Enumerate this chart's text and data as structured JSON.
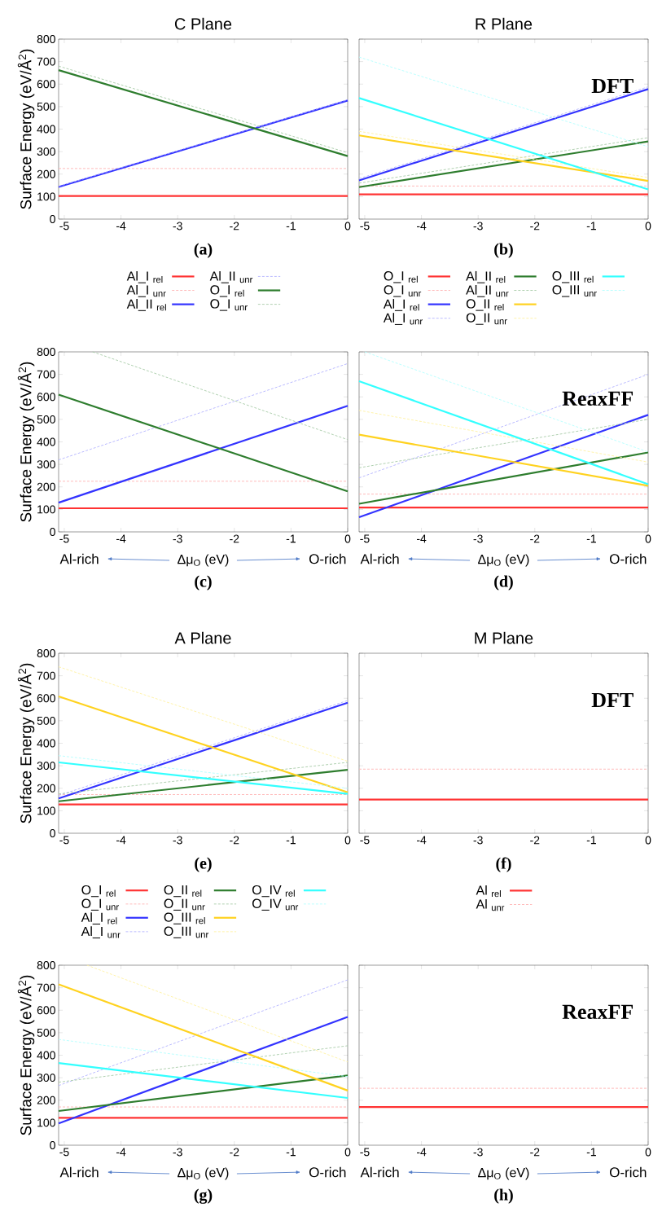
{
  "chart_data": [
    {
      "type": "line",
      "title": "C Plane",
      "ylabel": "Surface Energy (eV/Å$^{2}$)",
      "annotations": [
        "(a)"
      ],
      "xlim": [
        -5.1,
        0
      ],
      "ylim": [
        0,
        800
      ],
      "xticks": [
        -5,
        -4,
        -3,
        -2,
        -1,
        0
      ],
      "yticks": [
        0,
        100,
        200,
        300,
        400,
        500,
        600,
        700,
        800
      ],
      "legend": "bottom",
      "series": [
        {
          "name": "Al_I $_{rel}$",
          "color": "#ff3333",
          "x": [
            -5.1,
            0
          ],
          "values": [
            103,
            103
          ]
        },
        {
          "name": "Al_I $_{unr}$",
          "color": "#ffb3b3",
          "line_style": "dashed",
          "x": [
            -5.1,
            0
          ],
          "values": [
            225,
            225
          ]
        },
        {
          "name": "Al_II $_{rel}$",
          "color": "#3333ff",
          "x": [
            -5.1,
            0
          ],
          "values": [
            143,
            527
          ]
        },
        {
          "name": "Al_II $_{unr}$",
          "color": "#b3b3ff",
          "line_style": "dashed",
          "x": [
            -5.1,
            0
          ],
          "values": [
            146,
            530
          ]
        },
        {
          "name": "O_I $_{rel}$",
          "color": "#2e7d2e",
          "x": [
            -5.1,
            0
          ],
          "values": [
            662,
            280
          ]
        },
        {
          "name": "O_I $_{unr}$",
          "color": "#a8cca8",
          "line_style": "dashed",
          "x": [
            -5.1,
            0
          ],
          "values": [
            680,
            295
          ]
        }
      ]
    },
    {
      "type": "line",
      "title": "R Plane",
      "subtitle": "DFT",
      "annotations": [
        "(b)"
      ],
      "tick_labels": "x",
      "xlim": [
        -5.1,
        0
      ],
      "ylim": [
        0,
        800
      ],
      "xticks": [
        -5,
        -4,
        -3,
        -2,
        -1,
        0
      ],
      "yticks": [
        0,
        100,
        200,
        300,
        400,
        500,
        600,
        700,
        800
      ],
      "legend": "bottom",
      "series": [
        {
          "name": "O_I $_{rel}$",
          "color": "#ff3333",
          "x": [
            -5.1,
            0
          ],
          "values": [
            110,
            110
          ]
        },
        {
          "name": "O_I $_{unr}$",
          "color": "#ffb3b3",
          "line_style": "dashed",
          "x": [
            -5.1,
            0
          ],
          "values": [
            147,
            147
          ]
        },
        {
          "name": "Al_I $_{rel}$",
          "color": "#3333ff",
          "x": [
            -5.1,
            0
          ],
          "values": [
            172,
            578
          ]
        },
        {
          "name": "Al_I $_{unr}$",
          "color": "#b3b3ff",
          "line_style": "dashed",
          "x": [
            -5.1,
            0
          ],
          "values": [
            180,
            588
          ]
        },
        {
          "name": "Al_II $_{rel}$",
          "color": "#2e7d2e",
          "x": [
            -5.1,
            0
          ],
          "values": [
            142,
            345
          ]
        },
        {
          "name": "Al_II $_{unr}$",
          "color": "#a8cca8",
          "line_style": "dashed",
          "x": [
            -5.1,
            0
          ],
          "values": [
            160,
            362
          ]
        },
        {
          "name": "O_II $_{rel}$",
          "color": "#ffd21f",
          "x": [
            -5.1,
            0
          ],
          "values": [
            372,
            170
          ]
        },
        {
          "name": "O_II $_{unr}$",
          "color": "#fff2a0",
          "line_style": "dashed",
          "x": [
            -5.1,
            0
          ],
          "values": [
            390,
            185
          ]
        },
        {
          "name": "O_III $_{rel}$",
          "color": "#33ffff",
          "x": [
            -5.1,
            0
          ],
          "values": [
            538,
            132
          ]
        },
        {
          "name": "O_III $_{unr}$",
          "color": "#b3ffff",
          "line_style": "dashed",
          "x": [
            -5.1,
            0
          ],
          "values": [
            720,
            322
          ]
        }
      ]
    },
    {
      "type": "line",
      "ylabel": "Surface Energy (eV/Å$^{2}$)",
      "xlabel": "Δμ$_{O}$ (eV)",
      "annotations": [
        "(c)",
        "Al-rich",
        "O-rich"
      ],
      "xlim": [
        -5.1,
        0
      ],
      "ylim": [
        0,
        800
      ],
      "xticks": [
        -5,
        -4,
        -3,
        -2,
        -1,
        0
      ],
      "yticks": [
        0,
        100,
        200,
        300,
        400,
        500,
        600,
        700,
        800
      ],
      "series": [
        {
          "color": "#ff3333",
          "x": [
            -5.1,
            0
          ],
          "values": [
            105,
            105
          ]
        },
        {
          "color": "#ffb3b3",
          "line_style": "dashed",
          "x": [
            -5.1,
            0
          ],
          "values": [
            225,
            225
          ]
        },
        {
          "color": "#3333ff",
          "x": [
            -5.1,
            0
          ],
          "values": [
            130,
            560
          ]
        },
        {
          "color": "#b3b3ff",
          "line_style": "dashed",
          "x": [
            -5.1,
            0
          ],
          "values": [
            320,
            748
          ]
        },
        {
          "color": "#2e7d2e",
          "x": [
            -5.1,
            0
          ],
          "values": [
            610,
            180
          ]
        },
        {
          "color": "#a8cca8",
          "line_style": "dashed",
          "x": [
            -4.5,
            0
          ],
          "values": [
            800,
            410
          ]
        }
      ]
    },
    {
      "type": "line",
      "subtitle": "ReaxFF",
      "xlabel": "Δμ$_{O}$ (eV)",
      "annotations": [
        "(d)",
        "Al-rich",
        "O-rich"
      ],
      "tick_labels": "x",
      "xlim": [
        -5.1,
        0
      ],
      "ylim": [
        0,
        800
      ],
      "xticks": [
        -5,
        -4,
        -3,
        -2,
        -1,
        0
      ],
      "yticks": [
        0,
        100,
        200,
        300,
        400,
        500,
        600,
        700,
        800
      ],
      "series": [
        {
          "color": "#ff3333",
          "x": [
            -5.1,
            0
          ],
          "values": [
            108,
            108
          ]
        },
        {
          "color": "#ffb3b3",
          "line_style": "dashed",
          "x": [
            -5.1,
            0
          ],
          "values": [
            168,
            168
          ]
        },
        {
          "color": "#3333ff",
          "x": [
            -5.1,
            0
          ],
          "values": [
            65,
            520
          ]
        },
        {
          "color": "#b3b3ff",
          "line_style": "dashed",
          "x": [
            -5.1,
            0
          ],
          "values": [
            240,
            700
          ]
        },
        {
          "color": "#2e7d2e",
          "x": [
            -5.1,
            0
          ],
          "values": [
            125,
            353
          ]
        },
        {
          "color": "#a8cca8",
          "line_style": "dashed",
          "x": [
            -5.1,
            0
          ],
          "values": [
            285,
            500
          ]
        },
        {
          "color": "#ffd21f",
          "x": [
            -5.1,
            0
          ],
          "values": [
            432,
            205
          ]
        },
        {
          "color": "#fff2a0",
          "line_style": "dashed",
          "x": [
            -5.1,
            0
          ],
          "values": [
            540,
            310
          ]
        },
        {
          "color": "#33ffff",
          "x": [
            -5.1,
            0
          ],
          "values": [
            670,
            212
          ]
        },
        {
          "color": "#b3ffff",
          "line_style": "dashed",
          "x": [
            -5,
            0
          ],
          "values": [
            800,
            355
          ]
        }
      ]
    },
    {
      "type": "line",
      "title": "A Plane",
      "ylabel": "Surface Energy (eV/Å$^{2}$)",
      "annotations": [
        "(e)"
      ],
      "xlim": [
        -5.1,
        0
      ],
      "ylim": [
        0,
        800
      ],
      "xticks": [
        -5,
        -4,
        -3,
        -2,
        -1,
        0
      ],
      "yticks": [
        0,
        100,
        200,
        300,
        400,
        500,
        600,
        700,
        800
      ],
      "legend": "bottom",
      "series": [
        {
          "name": "O_I $_{rel}$",
          "color": "#ff3333",
          "x": [
            -5.1,
            0
          ],
          "values": [
            128,
            128
          ]
        },
        {
          "name": "O_I $_{unr}$",
          "color": "#ffb3b3",
          "line_style": "dashed",
          "x": [
            -5.1,
            0
          ],
          "values": [
            172,
            172
          ]
        },
        {
          "name": "Al_I $_{rel}$",
          "color": "#3333ff",
          "x": [
            -5.1,
            0
          ],
          "values": [
            155,
            580
          ]
        },
        {
          "name": "Al_I $_{unr}$",
          "color": "#b3b3ff",
          "line_style": "dashed",
          "x": [
            -5.1,
            0
          ],
          "values": [
            168,
            590
          ]
        },
        {
          "name": "O_II $_{rel}$",
          "color": "#2e7d2e",
          "x": [
            -5.1,
            0
          ],
          "values": [
            142,
            282
          ]
        },
        {
          "name": "O_II $_{unr}$",
          "color": "#a8cca8",
          "line_style": "dashed",
          "x": [
            -5.1,
            0
          ],
          "values": [
            175,
            315
          ]
        },
        {
          "name": "O_III $_{rel}$",
          "color": "#ffd21f",
          "x": [
            -5.1,
            0
          ],
          "values": [
            608,
            182
          ]
        },
        {
          "name": "O_III $_{unr}$",
          "color": "#fff2a0",
          "line_style": "dashed",
          "x": [
            -5.1,
            0
          ],
          "values": [
            740,
            320
          ]
        },
        {
          "name": "O_IV $_{rel}$",
          "color": "#33ffff",
          "x": [
            -5.1,
            0
          ],
          "values": [
            315,
            175
          ]
        },
        {
          "name": "O_IV $_{unr}$",
          "color": "#b3ffff",
          "line_style": "dashed",
          "x": [
            -5.1,
            0
          ],
          "values": [
            345,
            200
          ]
        }
      ]
    },
    {
      "type": "line",
      "title": "M Plane",
      "subtitle": "DFT",
      "annotations": [
        "(f)"
      ],
      "tick_labels": "x",
      "xlim": [
        -5.1,
        0
      ],
      "ylim": [
        0,
        800
      ],
      "xticks": [
        -5,
        -4,
        -3,
        -2,
        -1,
        0
      ],
      "yticks": [
        0,
        100,
        200,
        300,
        400,
        500,
        600,
        700,
        800
      ],
      "legend": "bottom",
      "series": [
        {
          "name": "Al $_{rel}$",
          "color": "#ff3333",
          "x": [
            -5.1,
            0
          ],
          "values": [
            150,
            150
          ]
        },
        {
          "name": "Al $_{unr}$",
          "color": "#ffb3b3",
          "line_style": "dashed",
          "x": [
            -5.1,
            0
          ],
          "values": [
            285,
            285
          ]
        }
      ]
    },
    {
      "type": "line",
      "ylabel": "Surface Energy (eV/Å$^{2}$)",
      "xlabel": "Δμ$_{O}$ (eV)",
      "annotations": [
        "(g)",
        "Al-rich",
        "O-rich"
      ],
      "xlim": [
        -5.1,
        0
      ],
      "ylim": [
        0,
        800
      ],
      "xticks": [
        -5,
        -4,
        -3,
        -2,
        -1,
        0
      ],
      "yticks": [
        0,
        100,
        200,
        300,
        400,
        500,
        600,
        700,
        800
      ],
      "series": [
        {
          "color": "#ff3333",
          "x": [
            -5.1,
            0
          ],
          "values": [
            122,
            122
          ]
        },
        {
          "color": "#ffb3b3",
          "line_style": "dashed",
          "x": [
            -5.1,
            0
          ],
          "values": [
            170,
            170
          ]
        },
        {
          "color": "#3333ff",
          "x": [
            -5.1,
            0
          ],
          "values": [
            97,
            570
          ]
        },
        {
          "color": "#b3b3ff",
          "line_style": "dashed",
          "x": [
            -5.1,
            0
          ],
          "values": [
            265,
            735
          ]
        },
        {
          "color": "#2e7d2e",
          "x": [
            -5.1,
            0
          ],
          "values": [
            152,
            310
          ]
        },
        {
          "color": "#a8cca8",
          "line_style": "dashed",
          "x": [
            -5.1,
            0
          ],
          "values": [
            280,
            442
          ]
        },
        {
          "color": "#ffd21f",
          "x": [
            -5.1,
            0
          ],
          "values": [
            715,
            243
          ]
        },
        {
          "color": "#fff2a0",
          "line_style": "dashed",
          "x": [
            -4.6,
            0
          ],
          "values": [
            800,
            370
          ]
        },
        {
          "color": "#33ffff",
          "x": [
            -5.1,
            0
          ],
          "values": [
            365,
            210
          ]
        },
        {
          "color": "#b3ffff",
          "line_style": "dashed",
          "x": [
            -5.1,
            0
          ],
          "values": [
            470,
            305
          ]
        }
      ]
    },
    {
      "type": "line",
      "subtitle": "ReaxFF",
      "xlabel": "Δμ$_{O}$ (eV)",
      "annotations": [
        "(h)",
        "Al-rich",
        "O-rich"
      ],
      "tick_labels": "x",
      "xlim": [
        -5.1,
        0
      ],
      "ylim": [
        0,
        800
      ],
      "xticks": [
        -5,
        -4,
        -3,
        -2,
        -1,
        0
      ],
      "yticks": [
        0,
        100,
        200,
        300,
        400,
        500,
        600,
        700,
        800
      ],
      "series": [
        {
          "color": "#ff3333",
          "x": [
            -5.1,
            0
          ],
          "values": [
            170,
            170
          ]
        },
        {
          "color": "#ffb3b3",
          "line_style": "dashed",
          "x": [
            -5.1,
            0
          ],
          "values": [
            253,
            253
          ]
        }
      ]
    }
  ]
}
